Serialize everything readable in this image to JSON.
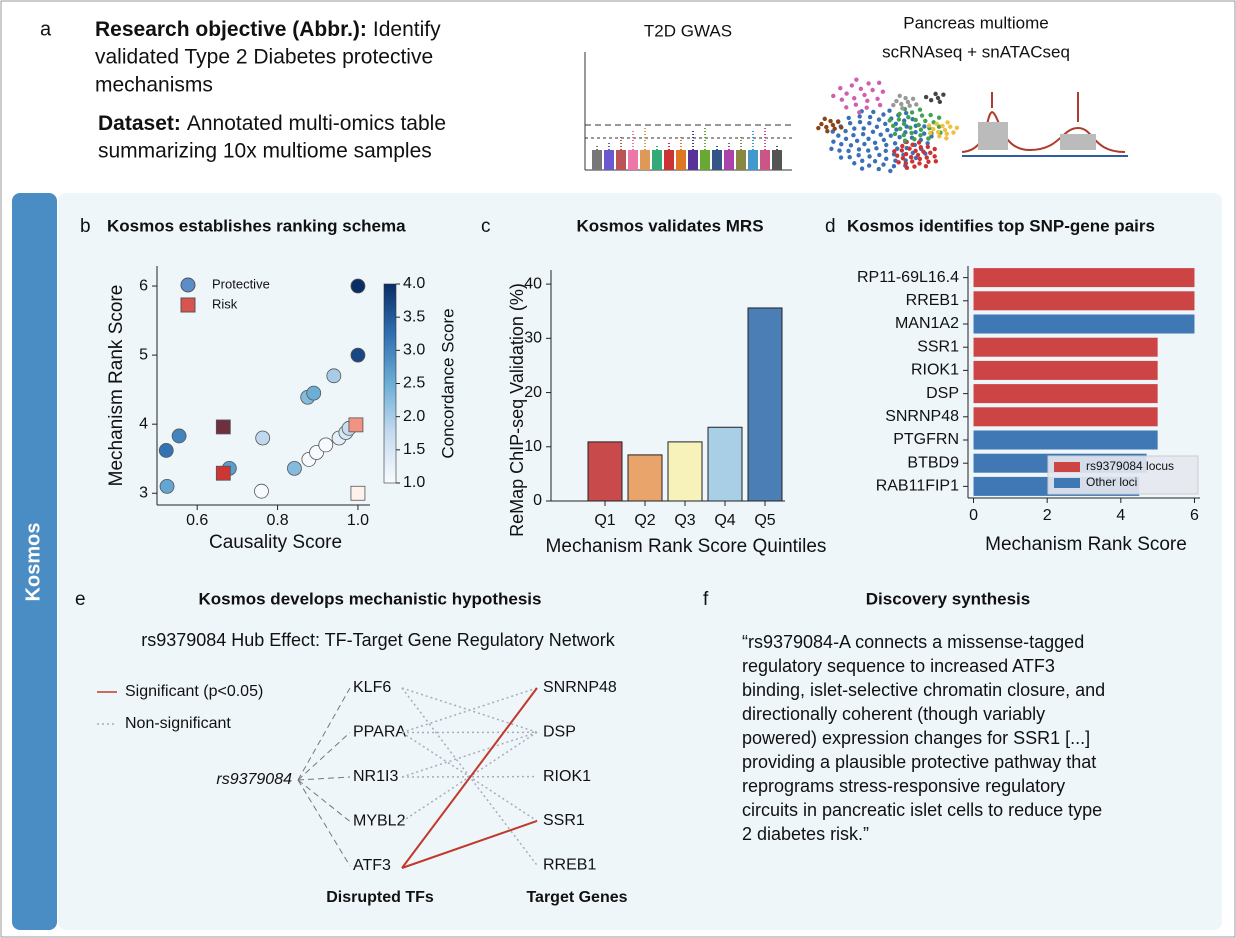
{
  "panel_labels": [
    "a",
    "b",
    "c",
    "d",
    "e",
    "f"
  ],
  "sidebar_label": "Kosmos",
  "header": {
    "objective_label": "Research objective (Abbr.):",
    "objective_lines": [
      "Identify",
      "validated Type 2 Diabetes protective",
      "mechanisms"
    ],
    "dataset_label": "Dataset:",
    "dataset_lines": [
      "Annotated multi-omics table",
      "summarizing 10x multiome samples"
    ],
    "gwas_title": "T2D GWAS",
    "multiome_title": [
      "Pancreas multiome",
      "scRNAseq + snATACseq"
    ]
  },
  "chart_data": [
    {
      "type": "scatter",
      "title": "Kosmos establishes ranking schema",
      "xlabel": "Causality Score",
      "ylabel": "Mechanism Rank Score",
      "xlim": [
        0.5,
        1.03
      ],
      "ylim": [
        2.83,
        6.29
      ],
      "xticks": [
        0.6,
        0.8,
        {
          "value": 1,
          "label": "1.0"
        }
      ],
      "yticks": [
        3,
        4,
        5,
        6
      ],
      "legend": "upper left",
      "colorbar": {
        "label": "Concordance Score",
        "colormap": "Blues",
        "lim": [
          1,
          4
        ],
        "ticks": [
          {
            "value": 1,
            "label": "1.0"
          },
          1.5,
          {
            "value": 2,
            "label": "2.0"
          },
          2.5,
          {
            "value": 3,
            "label": "3.0"
          },
          3.5,
          {
            "value": 4,
            "label": "4.0"
          }
        ]
      },
      "series": [
        {
          "name": "Protective",
          "marker": "circle",
          "color": "#5b8ec9",
          "colormap": "Blues",
          "x": [
            0.523,
            0.555,
            0.525,
            0.68,
            0.763,
            0.76,
            0.842,
            0.875,
            0.89,
            0.94,
            0.878,
            0.897,
            0.92,
            0.953,
            0.97,
            0.978,
            1.0,
            1.0
          ],
          "values": [
            3.62,
            3.83,
            3.1,
            3.36,
            3.8,
            3.03,
            3.36,
            4.39,
            4.45,
            4.7,
            3.49,
            3.59,
            3.7,
            3.8,
            3.88,
            3.94,
            6.0,
            5.0
          ],
          "concordance": [
            3.2,
            3.0,
            2.6,
            2.7,
            1.8,
            1.0,
            2.3,
            2.3,
            2.5,
            2.0,
            1.0,
            1.0,
            1.0,
            1.3,
            1.5,
            1.7,
            4.0,
            3.7
          ]
        },
        {
          "name": "Risk",
          "marker": "square",
          "color": "#d9534f",
          "colormap": "Reds",
          "x": [
            0.665,
            0.665,
            0.995,
            1.0
          ],
          "values": [
            3.96,
            3.29,
            3.99,
            3.0
          ],
          "concordance": [
            4.0,
            3.0,
            2.0,
            1.0
          ]
        }
      ]
    },
    {
      "type": "bar",
      "title": "Kosmos validates MRS",
      "xlabel": "Mechanism Rank Score Quintiles",
      "ylabel": "ReMap ChIP-seq Validation (%)",
      "categories": [
        "Q1",
        "Q2",
        "Q3",
        "Q4",
        "Q5"
      ],
      "values": [
        10.9,
        8.5,
        10.9,
        13.6,
        35.6
      ],
      "colors": [
        "#c94a4a",
        "#e8a46b",
        "#f6f2b9",
        "#a9cfe6",
        "#4b7eb4"
      ],
      "ylim": [
        0,
        42.6
      ],
      "yticks": [
        0,
        10,
        20,
        30,
        40
      ]
    },
    {
      "type": "barh",
      "title": "Kosmos identifies top SNP-gene pairs",
      "xlabel": "Mechanism Rank Score",
      "categories": [
        "RP11-69L16.4",
        "RREB1",
        "MAN1A2",
        "SSR1",
        "RIOK1",
        "DSP",
        "SNRNP48",
        "PTGFRN",
        "BTBD9",
        "RAB11FIP1"
      ],
      "series": [
        {
          "name": "rs9379084 locus",
          "color": "#cc4444",
          "values": [
            6,
            6,
            null,
            5,
            5,
            5,
            5,
            null,
            null,
            null
          ]
        },
        {
          "name": "Other loci",
          "color": "#3f78b5",
          "values": [
            null,
            null,
            6,
            null,
            null,
            null,
            null,
            5,
            4.7,
            4.5
          ]
        }
      ],
      "xlim": [
        -0.15,
        6.15
      ],
      "xticks": [
        0,
        2,
        4,
        6
      ],
      "legend": "lower right"
    }
  ],
  "network": {
    "title": "Kosmos develops mechanistic hypothesis",
    "subtitle": "rs9379084 Hub Effect: TF-Target Gene Regulatory Network",
    "legend": [
      "Significant (p<0.05)",
      "Non-significant"
    ],
    "source": "rs9379084",
    "tfs": [
      "KLF6",
      "PPARA",
      "NR1I3",
      "MYBL2",
      "ATF3"
    ],
    "targets": [
      "SNRNP48",
      "DSP",
      "RIOK1",
      "SSR1",
      "RREB1"
    ],
    "tf_header": "Disrupted TFs",
    "target_header": "Target Genes",
    "edges": [
      {
        "tf": 0,
        "target": 1,
        "significant": false
      },
      {
        "tf": 0,
        "target": 4,
        "significant": false
      },
      {
        "tf": 1,
        "target": 1,
        "significant": false
      },
      {
        "tf": 1,
        "target": 3,
        "significant": false
      },
      {
        "tf": 2,
        "target": 1,
        "significant": false
      },
      {
        "tf": 2,
        "target": 2,
        "significant": false
      },
      {
        "tf": 3,
        "target": 1,
        "significant": false
      },
      {
        "tf": 1,
        "target": 0,
        "significant": false
      },
      {
        "tf": 4,
        "target": 0,
        "significant": true
      },
      {
        "tf": 4,
        "target": 3,
        "significant": true
      }
    ]
  },
  "synthesis": {
    "title": "Discovery synthesis",
    "lines": [
      "“rs9379084-A connects a missense-tagged",
      "regulatory sequence to increased ATF3",
      "binding, islet-selective chromatin closure, and",
      "directionally coherent (though variably",
      "powered) expression changes for SSR1 [...]",
      "providing a plausible protective pathway that",
      "reprograms stress-responsive regulatory",
      "circuits in pancreatic islet cells to reduce type",
      "2 diabetes risk.”"
    ]
  }
}
